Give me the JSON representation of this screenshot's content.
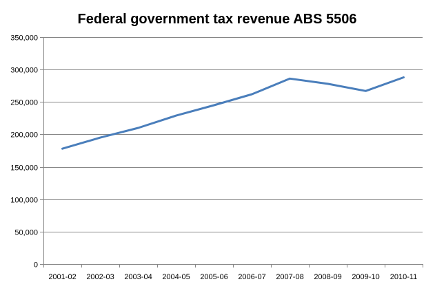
{
  "chart_data": {
    "type": "line",
    "title": "Federal government tax revenue ABS 5506",
    "xlabel": "",
    "ylabel": "",
    "categories": [
      "2001-02",
      "2002-03",
      "2003-04",
      "2004-05",
      "2005-06",
      "2006-07",
      "2007-08",
      "2008-09",
      "2009-10",
      "2010-11"
    ],
    "series": [
      {
        "values": [
          178000,
          195000,
          210000,
          229000,
          245000,
          262000,
          286000,
          278000,
          267000,
          288000
        ]
      }
    ],
    "ylim": [
      0,
      350000
    ],
    "y_ticks": [
      0,
      50000,
      100000,
      150000,
      200000,
      250000,
      300000,
      350000
    ],
    "y_tick_labels": [
      "0",
      "50,000",
      "100,000",
      "150,000",
      "200,000",
      "250,000",
      "300,000",
      "350,000"
    ],
    "grid": true,
    "legend": "none",
    "colors": {
      "line": "#4a7ebb",
      "grid": "#868686",
      "axis": "#868686"
    }
  }
}
